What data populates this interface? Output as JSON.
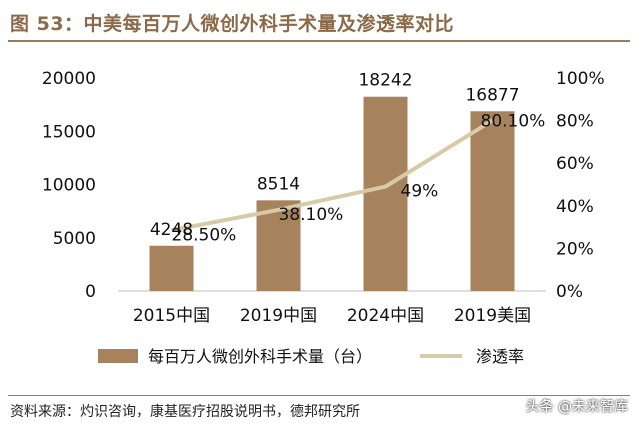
{
  "header": {
    "title": "图 53：中美每百万人微创外科手术量及渗透率对比"
  },
  "footer": {
    "source": "资料来源：灼识咨询，康基医疗招股说明书，德邦研究所",
    "watermark": "头条 @未来智库"
  },
  "colors": {
    "bar": "#a6835d",
    "line": "#d8caa7",
    "accent": "#8b6a4a"
  },
  "chart_data": {
    "type": "bar",
    "categories": [
      "2015中国",
      "2019中国",
      "2024中国",
      "2019美国"
    ],
    "series": [
      {
        "name": "每百万人微创外科手术量（台）",
        "type": "bar",
        "axis": "left",
        "values": [
          4248,
          8514,
          18242,
          16877
        ],
        "labels": [
          "4248",
          "8514",
          "18242",
          "16877"
        ]
      },
      {
        "name": "渗透率",
        "type": "line",
        "axis": "right",
        "values": [
          28.5,
          38.1,
          49,
          80.1
        ],
        "labels": [
          "28.50%",
          "38.10%",
          "49%",
          "80.10%"
        ]
      }
    ],
    "ylim_left": [
      0,
      20000
    ],
    "yticks_left": [
      "0",
      "5000",
      "10000",
      "15000",
      "20000"
    ],
    "ylim_right": [
      0,
      100
    ],
    "yticks_right": [
      "0%",
      "20%",
      "40%",
      "60%",
      "80%",
      "100%"
    ],
    "grid": false,
    "legend_position": "bottom"
  }
}
